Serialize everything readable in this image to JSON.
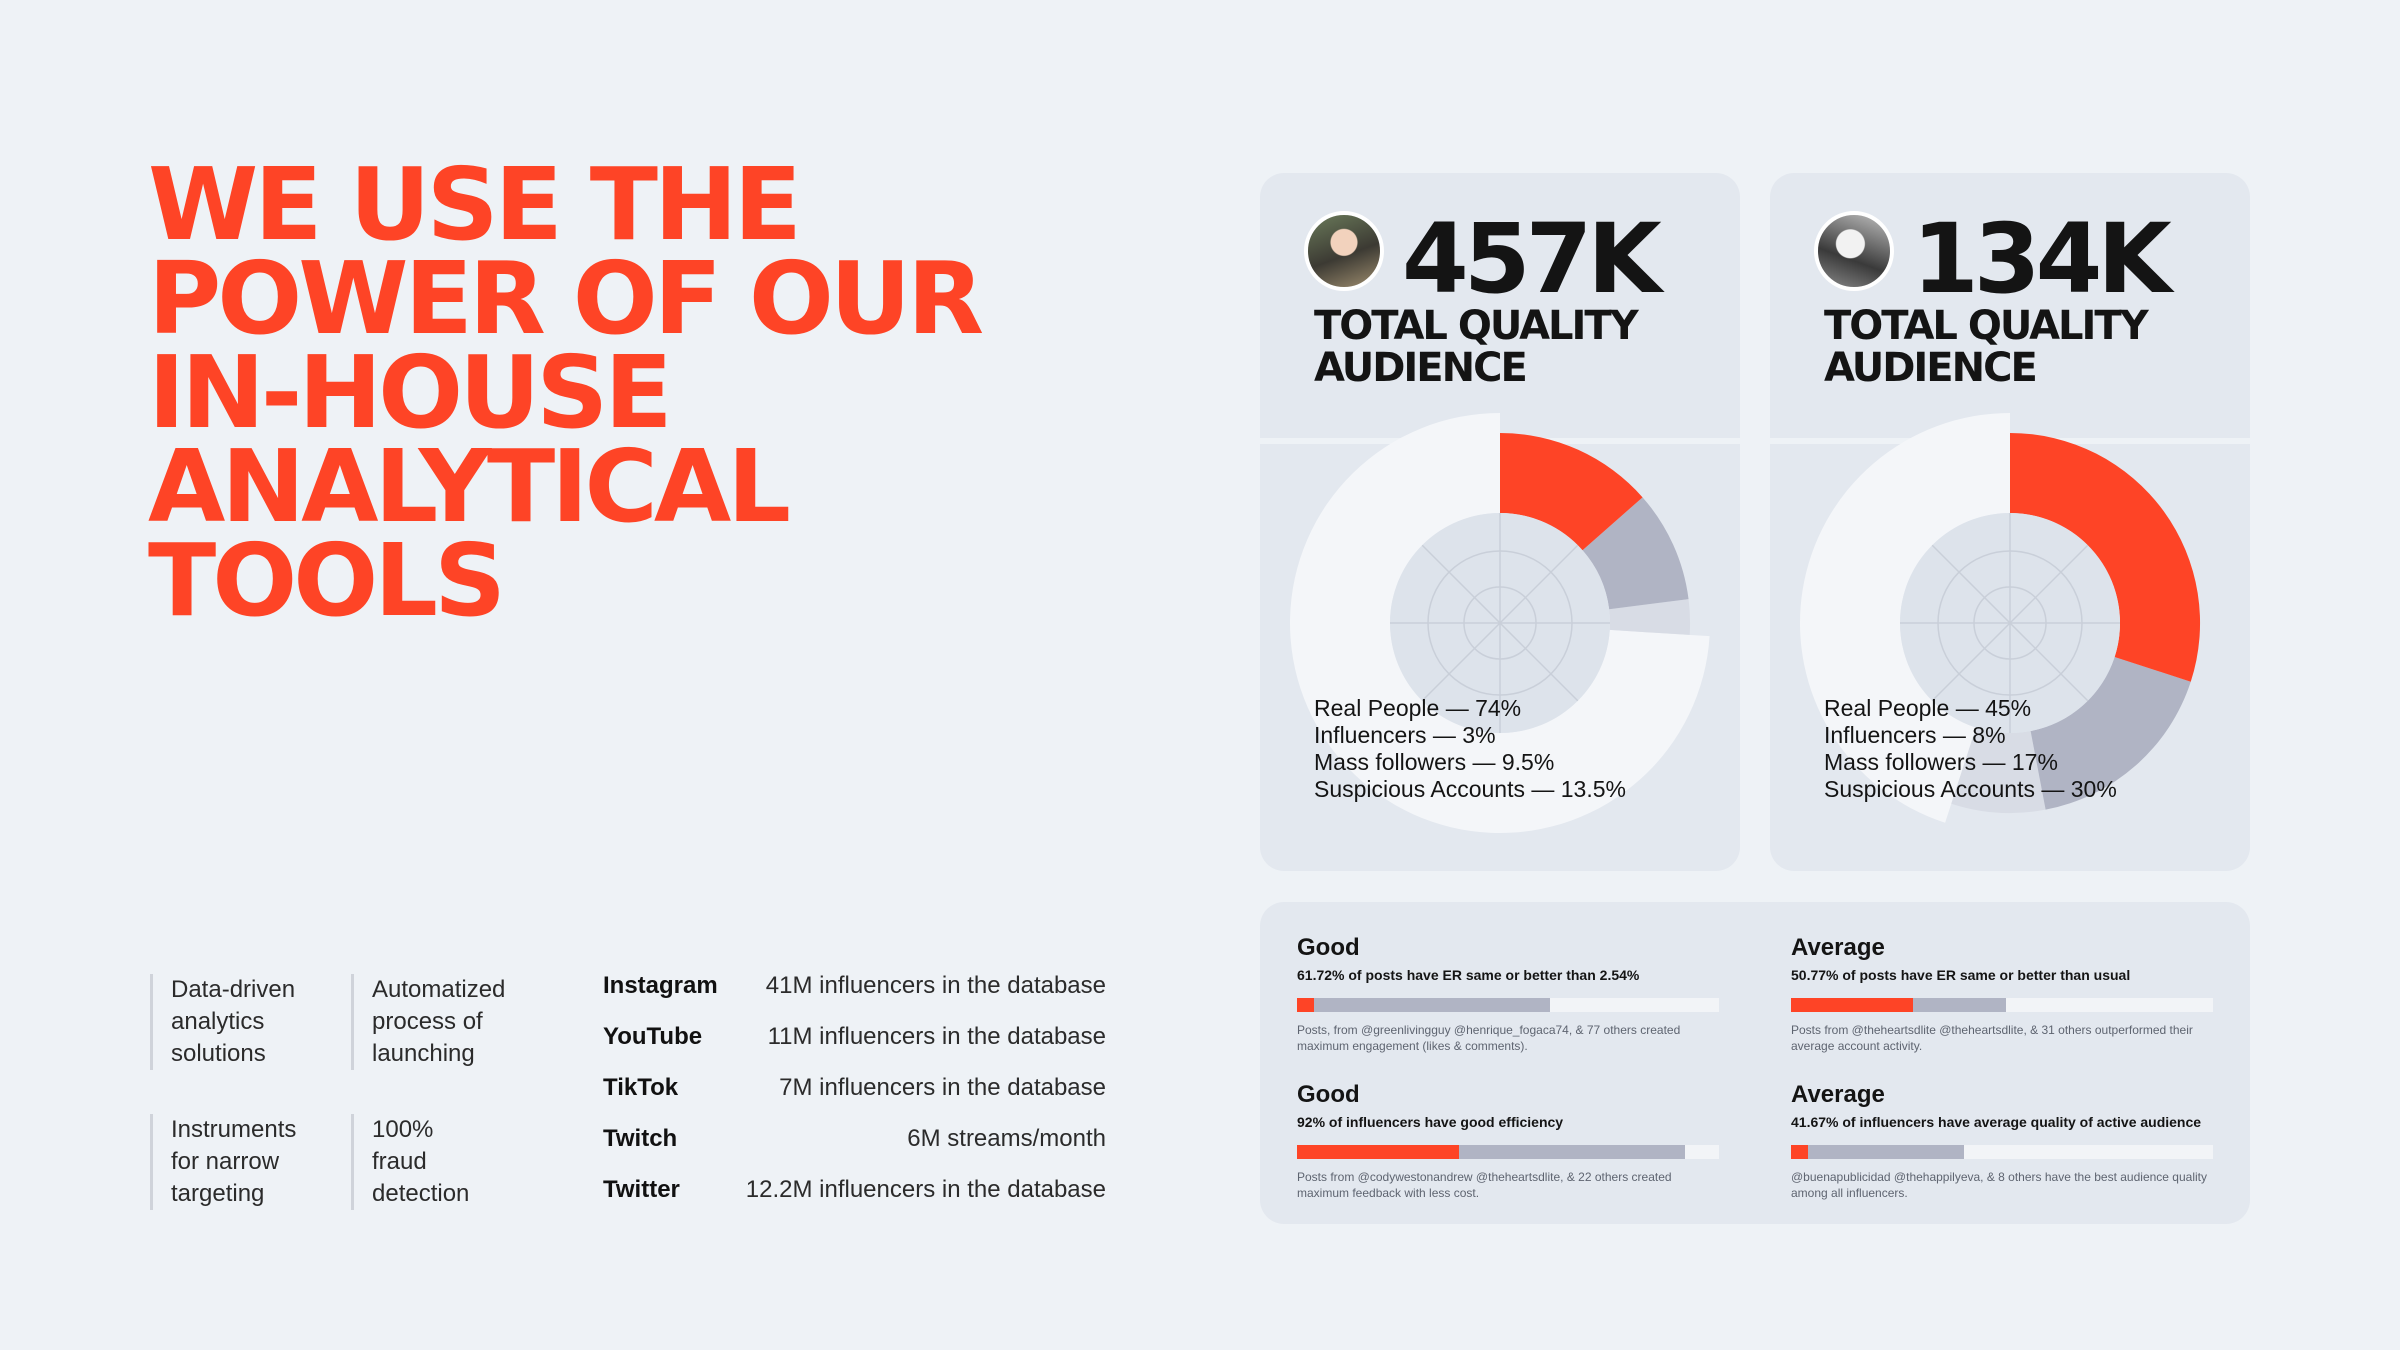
{
  "headline": {
    "lines": [
      "WE USE THE",
      "POWER OF OUR",
      "IN-HOUSE",
      "ANALYTICAL",
      "TOOLS"
    ]
  },
  "features": [
    {
      "lines": [
        "Data-driven",
        "analytics",
        "solutions"
      ]
    },
    {
      "lines": [
        "Automatized",
        "process of",
        "launching"
      ]
    },
    {
      "lines": [
        "Instruments",
        "for narrow",
        "targeting"
      ]
    },
    {
      "lines": [
        "100%",
        "fraud",
        "detection"
      ]
    }
  ],
  "platforms": [
    {
      "name": "Instagram",
      "value": "41M influencers in the database"
    },
    {
      "name": "YouTube",
      "value": "11M influencers in the database"
    },
    {
      "name": "TikTok",
      "value": "7M influencers in the database"
    },
    {
      "name": "Twitch",
      "value": "6M streams/month"
    },
    {
      "name": "Twitter",
      "value": "12.2M influencers in the database"
    }
  ],
  "colors": {
    "accent": "#fe4426",
    "gray_dark": "#b0b4c4",
    "gray_light": "#d8dce5",
    "white": "#f4f6f9",
    "card": "#e3e8ef",
    "background": "#eef2f6"
  },
  "audience_cards": [
    {
      "avatar_icon": "influencer-photo-icon",
      "number": "457K",
      "title_lines": [
        "TOTAL QUALITY",
        "AUDIENCE"
      ],
      "legend": [
        "Real People — 74%",
        "Influencers — 3%",
        "Mass followers — 9.5%",
        "Suspicious Accounts — 13.5%"
      ]
    },
    {
      "avatar_icon": "influencer-photo-icon",
      "number": "134K",
      "title_lines": [
        "TOTAL QUALITY",
        "AUDIENCE"
      ],
      "legend": [
        "Real People — 45%",
        "Influencers — 8%",
        "Mass followers — 17%",
        "Suspicious Accounts — 30%"
      ]
    }
  ],
  "chart_data": [
    {
      "type": "pie",
      "categories": [
        "Real People",
        "Influencers",
        "Mass followers",
        "Suspicious Accounts"
      ],
      "values": [
        74,
        3,
        9.5,
        13.5
      ]
    },
    {
      "type": "pie",
      "categories": [
        "Real People",
        "Influencers",
        "Mass followers",
        "Suspicious Accounts"
      ],
      "values": [
        45,
        8,
        17,
        30
      ]
    }
  ],
  "metrics": [
    {
      "rating": "Good",
      "description": "61.72% of posts have ER same or better than 2.54%",
      "red_fraction": 0.04,
      "gray_fraction": 0.6,
      "note": "Posts, from @greenlivingguy @henrique_fogaca74, & 77 others created maximum engagement (likes & comments)."
    },
    {
      "rating": "Average",
      "description": "50.77% of posts have ER same or better than usual",
      "red_fraction": 0.29,
      "gray_fraction": 0.51,
      "note": "Posts from @theheartsdlite @theheartsdlite, & 31 others outperformed their average account activity."
    },
    {
      "rating": "Good",
      "description": "92% of influencers have good efficiency",
      "red_fraction": 0.385,
      "gray_fraction": 0.92,
      "note": "Posts from @codywestonandrew @theheartsdlite, & 22 others created maximum feedback with less cost."
    },
    {
      "rating": "Average",
      "description": "41.67% of influencers have average quality of active audience",
      "red_fraction": 0.04,
      "gray_fraction": 0.41,
      "note": "@buenapublicidad @thehappilyeva, & 8 others have the best audience quality among all influencers."
    }
  ]
}
